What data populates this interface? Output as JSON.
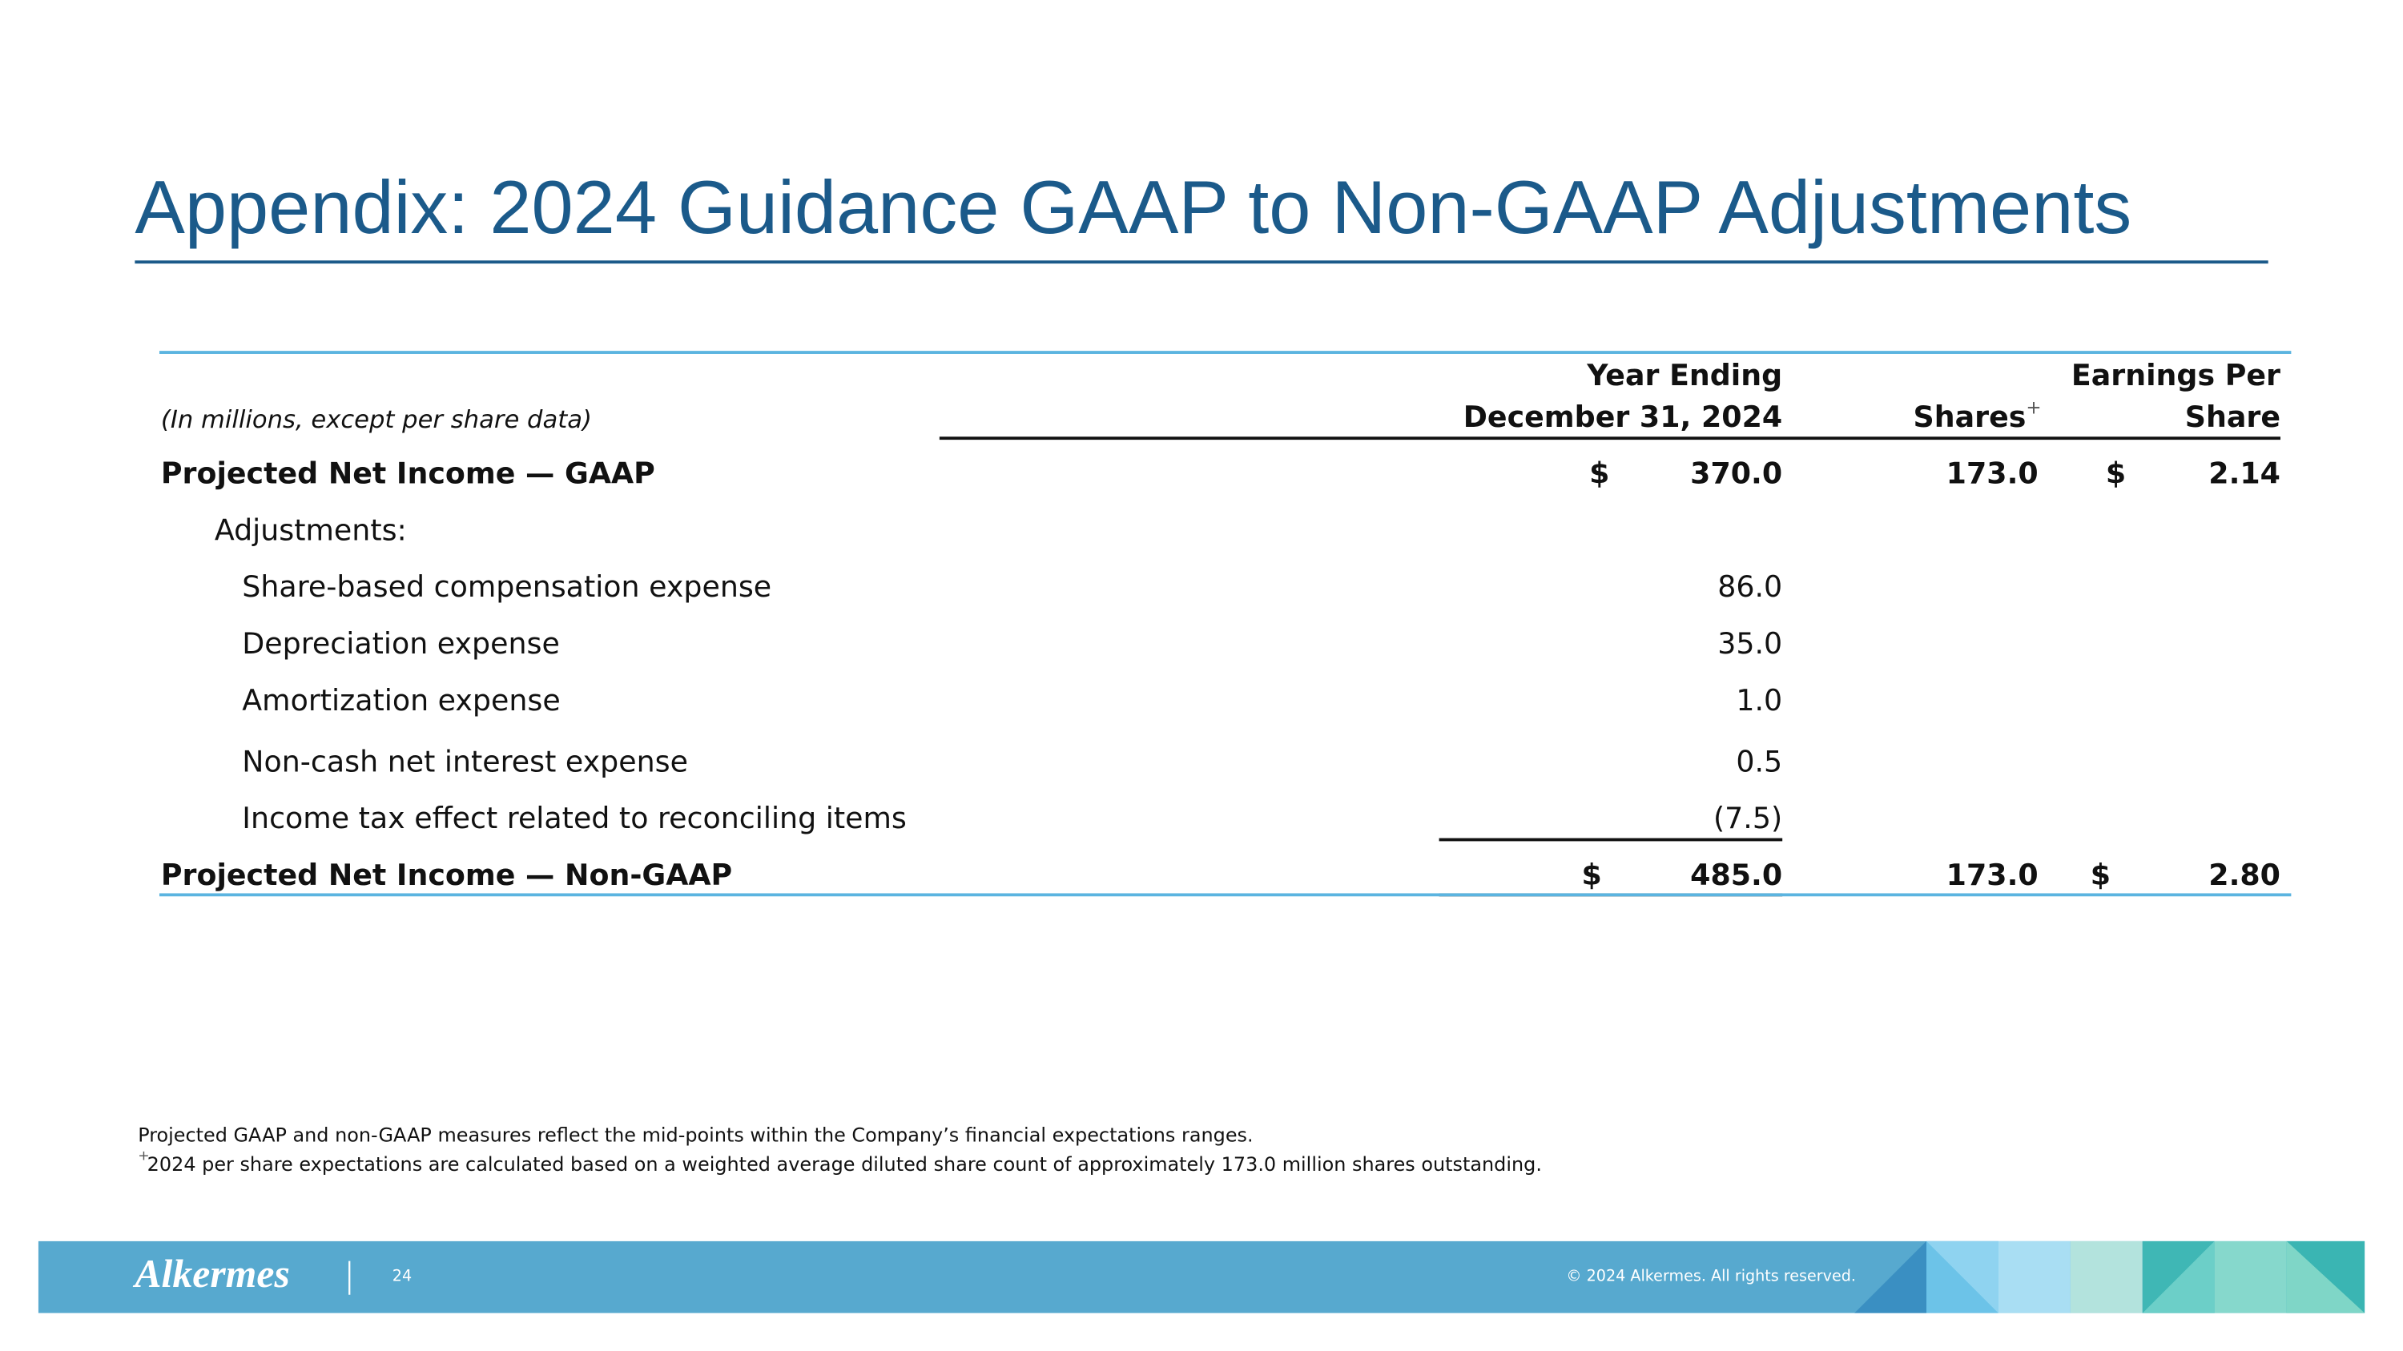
{
  "header": {
    "title": "Appendix: 2024 Guidance GAAP to Non-GAAP Adjustments"
  },
  "table": {
    "note": "(In millions, except per share data)",
    "columns": [
      {
        "lines": [
          "Year Ending",
          "December 31, 2024"
        ]
      },
      {
        "lines": [
          "Shares"
        ],
        "marker": "+"
      },
      {
        "lines": [
          "Earnings Per",
          "Share"
        ]
      }
    ],
    "rows": [
      {
        "label": "Projected Net Income — GAAP",
        "style": "bold",
        "currency": "$",
        "amount": "370.0",
        "shares": "173.0",
        "eps_currency": "$",
        "eps": "2.14"
      },
      {
        "label": "Adjustments:",
        "style": "sub"
      },
      {
        "label": "Share-based compensation expense",
        "style": "item",
        "amount": "86.0"
      },
      {
        "label": "Depreciation expense",
        "style": "item",
        "amount": "35.0"
      },
      {
        "label": "Amortization expense",
        "style": "item",
        "amount": "1.0"
      },
      {
        "label": "Non-cash net interest expense",
        "style": "item",
        "amount": "0.5"
      },
      {
        "label": "Income tax effect related to reconciling items",
        "style": "item",
        "amount": "(7.5)"
      },
      {
        "label": "Projected Net Income — Non-GAAP",
        "style": "bold",
        "currency": "$",
        "amount": "485.0",
        "shares": "173.0",
        "eps_currency": "$",
        "eps": "2.80"
      }
    ]
  },
  "footnotes": [
    {
      "text": "Projected GAAP and non-GAAP measures reflect the mid-points within the Company’s financial expectations ranges."
    },
    {
      "marker": "+",
      "text": "2024 per share expectations are calculated based on a weighted average diluted share count of approximately 173.0 million shares outstanding."
    }
  ],
  "footer": {
    "logo": "Alkermes",
    "page": "24",
    "copyright": "© 2024 Alkermes. All rights reserved."
  }
}
